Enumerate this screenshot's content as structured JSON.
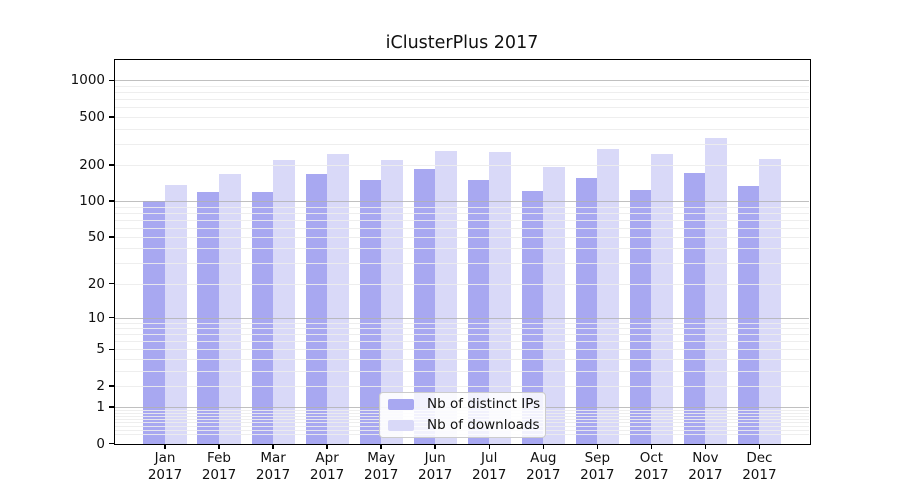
{
  "title": "iClusterPlus 2017",
  "colors": {
    "distinct_ips_bar": "#a8a8f1",
    "downloads_bar": "#d9d9f8",
    "major_grid": "#b0b0b0",
    "minor_grid": "#ececec",
    "spine": "#000000",
    "text": "#111111"
  },
  "legend": {
    "position": "lower center",
    "entries": [
      "Nb of distinct IPs",
      "Nb of downloads"
    ]
  },
  "chart_data": {
    "type": "bar",
    "title": "iClusterPlus 2017",
    "scale": "log10(value+1)",
    "grid": "horizontal log minor+major, drawn over bars",
    "categories": [
      "Jan",
      "Feb",
      "Mar",
      "Apr",
      "May",
      "Jun",
      "Jul",
      "Aug",
      "Sep",
      "Oct",
      "Nov",
      "Dec"
    ],
    "year_label": "2017",
    "series": [
      {
        "name": "Nb of distinct IPs",
        "color": "#a8a8f1",
        "values": [
          100,
          119,
          119,
          168,
          151,
          185,
          151,
          122,
          156,
          123,
          172,
          134
        ]
      },
      {
        "name": "Nb of downloads",
        "color": "#d9d9f8",
        "values": [
          136,
          168,
          219,
          246,
          218,
          262,
          254,
          193,
          271,
          247,
          331,
          222
        ]
      }
    ],
    "y_ticks": [
      0,
      1,
      2,
      5,
      10,
      20,
      50,
      100,
      200,
      500,
      1000
    ],
    "ylim": [
      0,
      1460
    ],
    "xlabel": "",
    "ylabel": ""
  }
}
